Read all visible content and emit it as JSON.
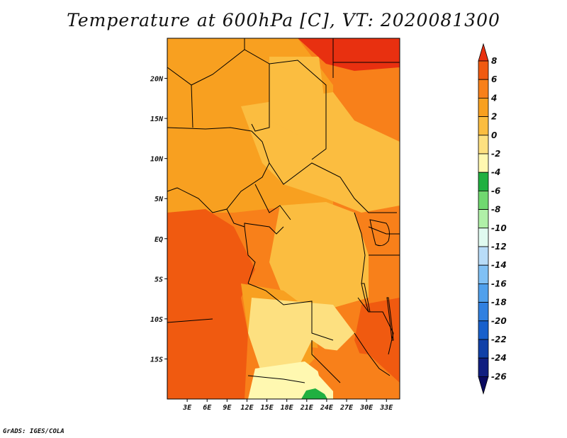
{
  "map": {
    "title": "Temperature at 600hPa [C], VT: 2020081300",
    "credit": "GrADS: IGES/COLA",
    "lat_labels": [
      "20N",
      "15N",
      "10N",
      "5N",
      "EQ",
      "5S",
      "10S",
      "15S"
    ],
    "lat_values": [
      20,
      15,
      10,
      5,
      0,
      -5,
      -10,
      -15
    ],
    "lon_labels": [
      "3E",
      "6E",
      "9E",
      "12E",
      "15E",
      "18E",
      "21E",
      "24E",
      "27E",
      "30E",
      "33E"
    ],
    "lon_values": [
      3,
      6,
      9,
      12,
      15,
      18,
      21,
      24,
      27,
      30,
      33
    ],
    "extent": {
      "lon_min": 0,
      "lon_max": 35,
      "lat_min": -20,
      "lat_max": 25
    }
  },
  "colorbar": {
    "levels": [
      "8",
      "6",
      "4",
      "2",
      "0",
      "-2",
      "-4",
      "-6",
      "-8",
      "-10",
      "-12",
      "-14",
      "-16",
      "-18",
      "-20",
      "-22",
      "-24",
      "-26"
    ],
    "colors": [
      "#e83010",
      "#f05a10",
      "#f8801a",
      "#f8a020",
      "#fbbd40",
      "#fde080",
      "#fff8b0",
      "#20b040",
      "#70d870",
      "#b0f0a8",
      "#e0faf0",
      "#b8dcf8",
      "#80c0f4",
      "#50a0ec",
      "#3080e0",
      "#1860cc",
      "#1040a8",
      "#101e80",
      "#0a0a60"
    ]
  },
  "colors": {
    "band_warm4": "#f05a10",
    "band_warm3": "#f8801a",
    "band_warm2": "#f8a020",
    "band_warm1": "#fbbd40",
    "band_mild": "#fde080",
    "band_cool": "#fff8b0",
    "band_green": "#20b040",
    "band_hot": "#e83010",
    "border": "#000000"
  }
}
